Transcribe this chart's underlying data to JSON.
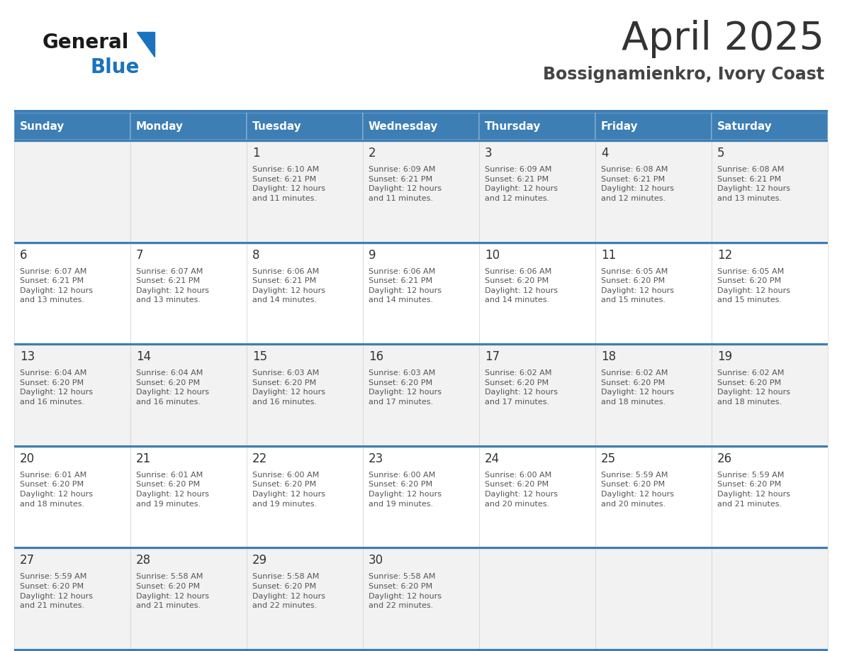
{
  "title": "April 2025",
  "subtitle": "Bossignamienkro, Ivory Coast",
  "days_of_week": [
    "Sunday",
    "Monday",
    "Tuesday",
    "Wednesday",
    "Thursday",
    "Friday",
    "Saturday"
  ],
  "header_bg": "#3D7EB5",
  "header_text": "#FFFFFF",
  "row_bg_light": "#F2F2F2",
  "row_bg_white": "#FFFFFF",
  "separator_color": "#3D7EB5",
  "border_color": "#CCCCCC",
  "title_color": "#333333",
  "subtitle_color": "#444444",
  "day_num_color": "#333333",
  "cell_text_color": "#555555",
  "logo_text_color": "#1a1a1a",
  "logo_blue_color": "#1A73BE",
  "calendar_data": [
    [
      {
        "day": null,
        "info": null
      },
      {
        "day": null,
        "info": null
      },
      {
        "day": 1,
        "info": "Sunrise: 6:10 AM\nSunset: 6:21 PM\nDaylight: 12 hours\nand 11 minutes."
      },
      {
        "day": 2,
        "info": "Sunrise: 6:09 AM\nSunset: 6:21 PM\nDaylight: 12 hours\nand 11 minutes."
      },
      {
        "day": 3,
        "info": "Sunrise: 6:09 AM\nSunset: 6:21 PM\nDaylight: 12 hours\nand 12 minutes."
      },
      {
        "day": 4,
        "info": "Sunrise: 6:08 AM\nSunset: 6:21 PM\nDaylight: 12 hours\nand 12 minutes."
      },
      {
        "day": 5,
        "info": "Sunrise: 6:08 AM\nSunset: 6:21 PM\nDaylight: 12 hours\nand 13 minutes."
      }
    ],
    [
      {
        "day": 6,
        "info": "Sunrise: 6:07 AM\nSunset: 6:21 PM\nDaylight: 12 hours\nand 13 minutes."
      },
      {
        "day": 7,
        "info": "Sunrise: 6:07 AM\nSunset: 6:21 PM\nDaylight: 12 hours\nand 13 minutes."
      },
      {
        "day": 8,
        "info": "Sunrise: 6:06 AM\nSunset: 6:21 PM\nDaylight: 12 hours\nand 14 minutes."
      },
      {
        "day": 9,
        "info": "Sunrise: 6:06 AM\nSunset: 6:21 PM\nDaylight: 12 hours\nand 14 minutes."
      },
      {
        "day": 10,
        "info": "Sunrise: 6:06 AM\nSunset: 6:20 PM\nDaylight: 12 hours\nand 14 minutes."
      },
      {
        "day": 11,
        "info": "Sunrise: 6:05 AM\nSunset: 6:20 PM\nDaylight: 12 hours\nand 15 minutes."
      },
      {
        "day": 12,
        "info": "Sunrise: 6:05 AM\nSunset: 6:20 PM\nDaylight: 12 hours\nand 15 minutes."
      }
    ],
    [
      {
        "day": 13,
        "info": "Sunrise: 6:04 AM\nSunset: 6:20 PM\nDaylight: 12 hours\nand 16 minutes."
      },
      {
        "day": 14,
        "info": "Sunrise: 6:04 AM\nSunset: 6:20 PM\nDaylight: 12 hours\nand 16 minutes."
      },
      {
        "day": 15,
        "info": "Sunrise: 6:03 AM\nSunset: 6:20 PM\nDaylight: 12 hours\nand 16 minutes."
      },
      {
        "day": 16,
        "info": "Sunrise: 6:03 AM\nSunset: 6:20 PM\nDaylight: 12 hours\nand 17 minutes."
      },
      {
        "day": 17,
        "info": "Sunrise: 6:02 AM\nSunset: 6:20 PM\nDaylight: 12 hours\nand 17 minutes."
      },
      {
        "day": 18,
        "info": "Sunrise: 6:02 AM\nSunset: 6:20 PM\nDaylight: 12 hours\nand 18 minutes."
      },
      {
        "day": 19,
        "info": "Sunrise: 6:02 AM\nSunset: 6:20 PM\nDaylight: 12 hours\nand 18 minutes."
      }
    ],
    [
      {
        "day": 20,
        "info": "Sunrise: 6:01 AM\nSunset: 6:20 PM\nDaylight: 12 hours\nand 18 minutes."
      },
      {
        "day": 21,
        "info": "Sunrise: 6:01 AM\nSunset: 6:20 PM\nDaylight: 12 hours\nand 19 minutes."
      },
      {
        "day": 22,
        "info": "Sunrise: 6:00 AM\nSunset: 6:20 PM\nDaylight: 12 hours\nand 19 minutes."
      },
      {
        "day": 23,
        "info": "Sunrise: 6:00 AM\nSunset: 6:20 PM\nDaylight: 12 hours\nand 19 minutes."
      },
      {
        "day": 24,
        "info": "Sunrise: 6:00 AM\nSunset: 6:20 PM\nDaylight: 12 hours\nand 20 minutes."
      },
      {
        "day": 25,
        "info": "Sunrise: 5:59 AM\nSunset: 6:20 PM\nDaylight: 12 hours\nand 20 minutes."
      },
      {
        "day": 26,
        "info": "Sunrise: 5:59 AM\nSunset: 6:20 PM\nDaylight: 12 hours\nand 21 minutes."
      }
    ],
    [
      {
        "day": 27,
        "info": "Sunrise: 5:59 AM\nSunset: 6:20 PM\nDaylight: 12 hours\nand 21 minutes."
      },
      {
        "day": 28,
        "info": "Sunrise: 5:58 AM\nSunset: 6:20 PM\nDaylight: 12 hours\nand 21 minutes."
      },
      {
        "day": 29,
        "info": "Sunrise: 5:58 AM\nSunset: 6:20 PM\nDaylight: 12 hours\nand 22 minutes."
      },
      {
        "day": 30,
        "info": "Sunrise: 5:58 AM\nSunset: 6:20 PM\nDaylight: 12 hours\nand 22 minutes."
      },
      {
        "day": null,
        "info": null
      },
      {
        "day": null,
        "info": null
      },
      {
        "day": null,
        "info": null
      }
    ]
  ]
}
